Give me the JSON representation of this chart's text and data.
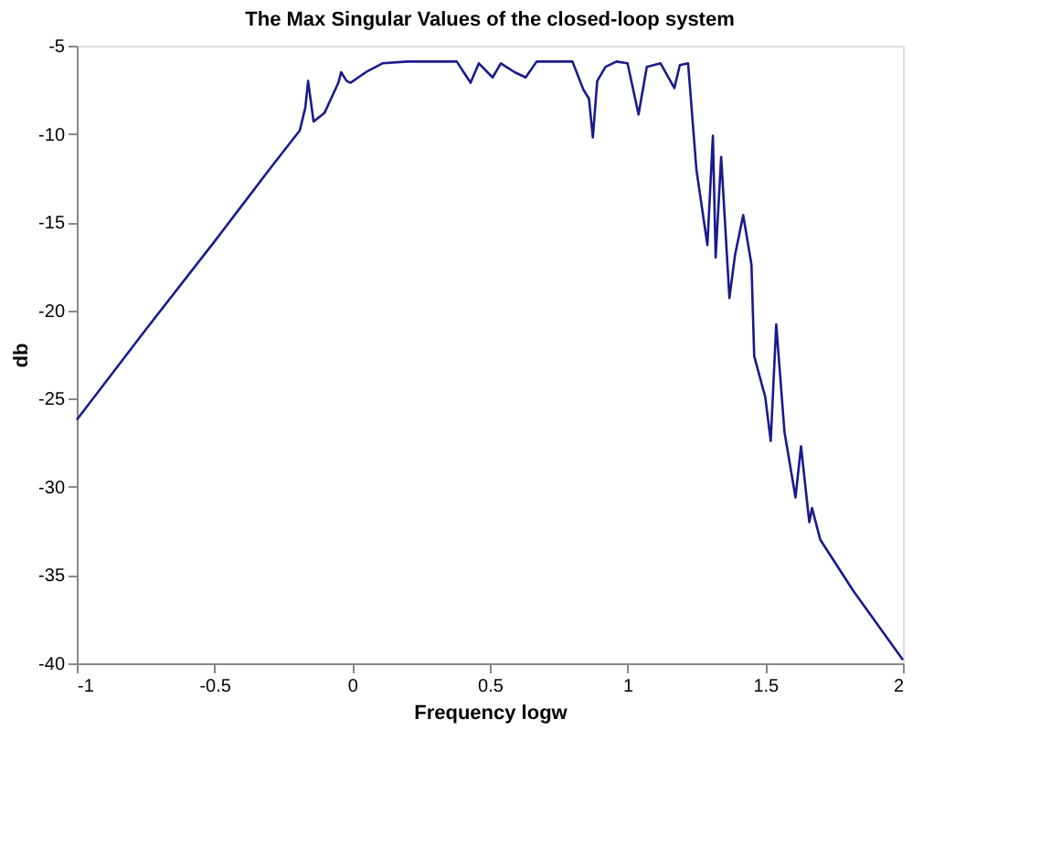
{
  "chart_data": {
    "type": "line",
    "title": "The Max Singular Values of the closed-loop system",
    "xlabel": "Frequency logw",
    "ylabel": "db",
    "xlim": [
      -1,
      2
    ],
    "xticks": [
      -1,
      -0.5,
      0,
      0.5,
      1,
      1.5,
      2
    ],
    "ylim": [
      -40,
      -5
    ],
    "yticks": [
      -40,
      -35,
      -30,
      -25,
      -20,
      -15,
      -10,
      -5
    ],
    "grid": false,
    "legend": false,
    "series": [
      {
        "color": "#1a1a8c",
        "x": [
          -1,
          -0.75,
          -0.5,
          -0.3,
          -0.19,
          -0.17,
          -0.16,
          -0.14,
          -0.1,
          -0.05,
          -0.04,
          -0.02,
          -0.006,
          0.05,
          0.11,
          0.2,
          0.3,
          0.38,
          0.43,
          0.46,
          0.51,
          0.54,
          0.59,
          0.63,
          0.67,
          0.8,
          0.84,
          0.86,
          0.874,
          0.89,
          0.92,
          0.96,
          1.0,
          1.04,
          1.07,
          1.12,
          1.17,
          1.19,
          1.22,
          1.25,
          1.29,
          1.31,
          1.32,
          1.34,
          1.37,
          1.39,
          1.42,
          1.45,
          1.46,
          1.5,
          1.52,
          1.54,
          1.57,
          1.61,
          1.63,
          1.66,
          1.67,
          1.7,
          1.82,
          2
        ],
        "values": [
          -26.2,
          -21.1,
          -16.1,
          -12.0,
          -9.8,
          -8.5,
          -7.0,
          -9.3,
          -8.8,
          -7.1,
          -6.5,
          -7.0,
          -7.1,
          -6.5,
          -6.0,
          -5.9,
          -5.9,
          -5.9,
          -7.1,
          -6.0,
          -6.8,
          -6.0,
          -6.5,
          -6.8,
          -5.9,
          -5.9,
          -7.5,
          -8.0,
          -10.2,
          -7.0,
          -6.2,
          -5.9,
          -6.0,
          -8.9,
          -6.2,
          -6.0,
          -7.4,
          -6.1,
          -6.0,
          -12.0,
          -16.3,
          -10.1,
          -17.0,
          -11.3,
          -19.3,
          -16.9,
          -14.6,
          -17.4,
          -22.6,
          -24.9,
          -27.4,
          -20.8,
          -26.9,
          -30.6,
          -27.7,
          -32.0,
          -31.2,
          -33.0,
          -35.9,
          -39.8
        ]
      }
    ]
  }
}
